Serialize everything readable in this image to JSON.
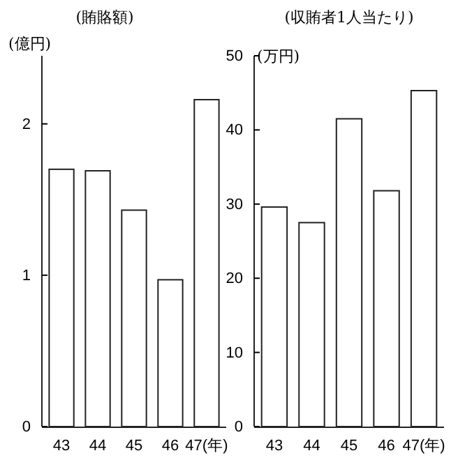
{
  "chart_data": [
    {
      "type": "bar",
      "title": "(賄賂額)",
      "ylabel": "(億円)",
      "categories": [
        "43",
        "44",
        "45",
        "46",
        "47(年)"
      ],
      "values": [
        1.7,
        1.69,
        1.43,
        0.97,
        2.16
      ],
      "color": "#ffffff",
      "ylim": [
        0,
        2.45
      ],
      "yticks": [
        0,
        1,
        2
      ]
    },
    {
      "type": "bar",
      "title": "(収賄者1人当たり)",
      "ylabel": "(万円)",
      "categories": [
        "43",
        "44",
        "45",
        "46",
        "47(年)"
      ],
      "values": [
        29.6,
        27.5,
        41.5,
        31.8,
        45.3
      ],
      "color": "#ffffff",
      "ylim": [
        0,
        50
      ],
      "yticks": [
        0,
        10,
        20,
        30,
        40,
        50
      ]
    }
  ]
}
